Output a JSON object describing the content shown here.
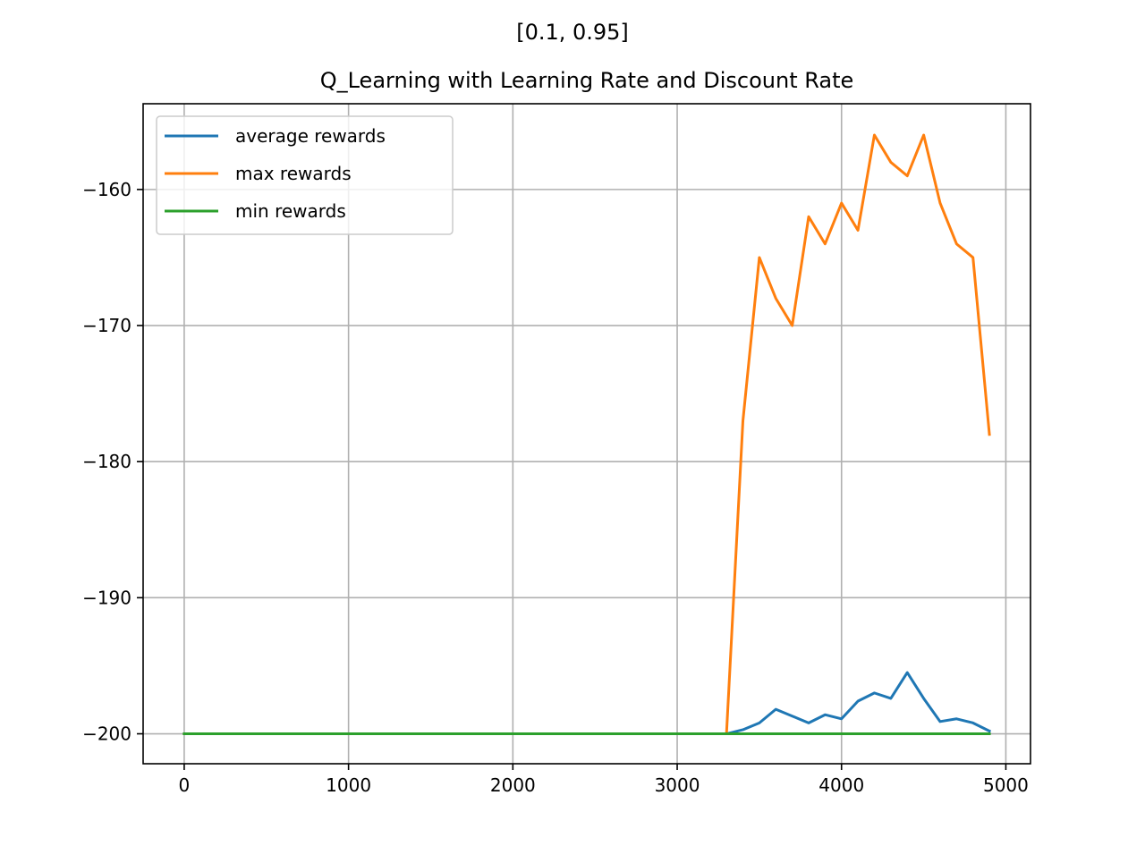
{
  "figure": {
    "suptitle": "[0.1, 0.95]"
  },
  "chart_data": {
    "type": "line",
    "title": "Q_Learning with Learning Rate and Discount Rate",
    "xlabel": "",
    "ylabel": "",
    "xlim": [
      -250,
      5150
    ],
    "ylim": [
      -202.2,
      -153.7
    ],
    "grid": true,
    "legend_position": "top-left",
    "x_ticks": [
      0,
      1000,
      2000,
      3000,
      4000,
      5000
    ],
    "x_tick_labels": [
      "0",
      "1000",
      "2000",
      "3000",
      "4000",
      "5000"
    ],
    "y_ticks": [
      -160,
      -170,
      -180,
      -190,
      -200
    ],
    "y_tick_labels": [
      "−160",
      "−170",
      "−180",
      "−190",
      "−200"
    ],
    "x": [
      0,
      100,
      200,
      300,
      400,
      500,
      600,
      700,
      800,
      900,
      1000,
      1100,
      1200,
      1300,
      1400,
      1500,
      1600,
      1700,
      1800,
      1900,
      2000,
      2100,
      2200,
      2300,
      2400,
      2500,
      2600,
      2700,
      2800,
      2900,
      3000,
      3100,
      3200,
      3300,
      3400,
      3500,
      3600,
      3700,
      3800,
      3900,
      4000,
      4100,
      4200,
      4300,
      4400,
      4500,
      4600,
      4700,
      4800,
      4900
    ],
    "series": [
      {
        "name": "average rewards",
        "color": "#1f77b4",
        "values": [
          -200,
          -200,
          -200,
          -200,
          -200,
          -200,
          -200,
          -200,
          -200,
          -200,
          -200,
          -200,
          -200,
          -200,
          -200,
          -200,
          -200,
          -200,
          -200,
          -200,
          -200,
          -200,
          -200,
          -200,
          -200,
          -200,
          -200,
          -200,
          -200,
          -200,
          -200,
          -200,
          -200,
          -200,
          -199.7,
          -199.2,
          -198.2,
          -198.7,
          -199.2,
          -198.6,
          -198.9,
          -197.6,
          -197.0,
          -197.4,
          -195.5,
          -197.4,
          -199.1,
          -198.9,
          -199.2,
          -199.8
        ]
      },
      {
        "name": "max rewards",
        "color": "#ff7f0e",
        "values": [
          -200,
          -200,
          -200,
          -200,
          -200,
          -200,
          -200,
          -200,
          -200,
          -200,
          -200,
          -200,
          -200,
          -200,
          -200,
          -200,
          -200,
          -200,
          -200,
          -200,
          -200,
          -200,
          -200,
          -200,
          -200,
          -200,
          -200,
          -200,
          -200,
          -200,
          -200,
          -200,
          -200,
          -200,
          -177,
          -165,
          -168,
          -170,
          -162,
          -164,
          -161,
          -163,
          -156,
          -158,
          -159,
          -156,
          -161,
          -164,
          -165,
          -178
        ]
      },
      {
        "name": "min rewards",
        "color": "#2ca02c",
        "values": [
          -200,
          -200,
          -200,
          -200,
          -200,
          -200,
          -200,
          -200,
          -200,
          -200,
          -200,
          -200,
          -200,
          -200,
          -200,
          -200,
          -200,
          -200,
          -200,
          -200,
          -200,
          -200,
          -200,
          -200,
          -200,
          -200,
          -200,
          -200,
          -200,
          -200,
          -200,
          -200,
          -200,
          -200,
          -200,
          -200,
          -200,
          -200,
          -200,
          -200,
          -200,
          -200,
          -200,
          -200,
          -200,
          -200,
          -200,
          -200,
          -200,
          -200
        ]
      }
    ]
  }
}
